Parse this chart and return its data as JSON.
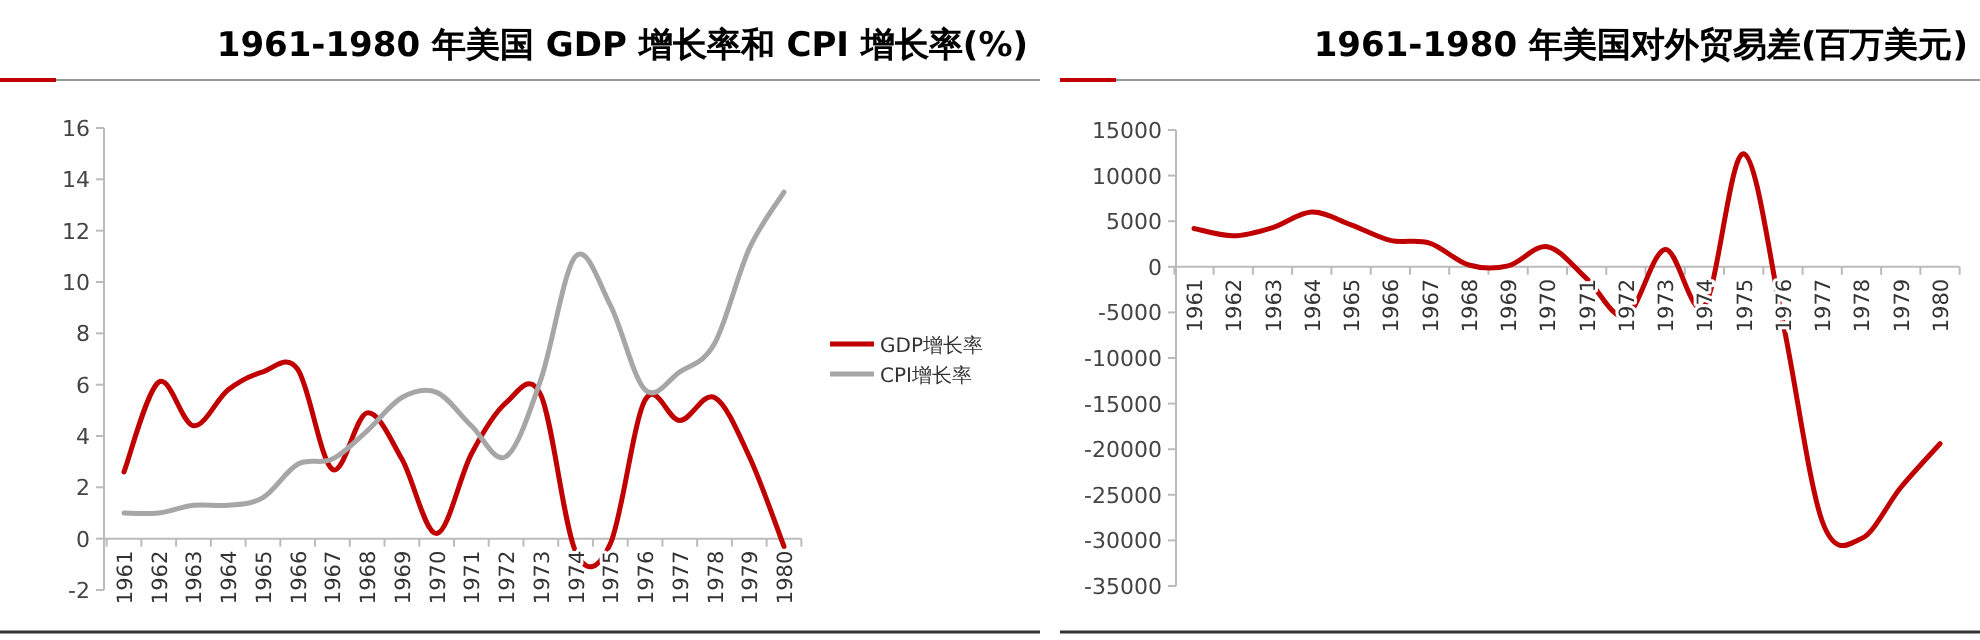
{
  "chart_data": [
    {
      "type": "line",
      "title": "1961-1980 年美国 GDP 增长率和 CPI 增长率(%)",
      "categories": [
        "1961",
        "1962",
        "1963",
        "1964",
        "1965",
        "1966",
        "1967",
        "1968",
        "1969",
        "1970",
        "1971",
        "1972",
        "1973",
        "1974",
        "1975",
        "1976",
        "1977",
        "1978",
        "1979",
        "1980"
      ],
      "series": [
        {
          "name": "GDP增长率",
          "color": "#c00000",
          "values": [
            2.6,
            6.1,
            4.4,
            5.8,
            6.5,
            6.6,
            2.7,
            4.9,
            3.1,
            0.2,
            3.3,
            5.3,
            5.6,
            -0.5,
            -0.2,
            5.4,
            4.6,
            5.5,
            3.2,
            -0.3
          ]
        },
        {
          "name": "CPI增长率",
          "color": "#a6a6a6",
          "values": [
            1.0,
            1.0,
            1.3,
            1.3,
            1.6,
            2.9,
            3.1,
            4.2,
            5.5,
            5.7,
            4.4,
            3.2,
            6.2,
            11.0,
            9.1,
            5.8,
            6.5,
            7.6,
            11.3,
            13.5
          ]
        }
      ],
      "ylim": [
        -2,
        16
      ],
      "yticks": [
        -2,
        0,
        2,
        4,
        6,
        8,
        10,
        12,
        14,
        16
      ],
      "legend": "right"
    },
    {
      "type": "line",
      "title": "1961-1980 年美国对外贸易差(百万美元)",
      "categories": [
        "1961",
        "1962",
        "1963",
        "1964",
        "1965",
        "1966",
        "1967",
        "1968",
        "1969",
        "1970",
        "1971",
        "1972",
        "1973",
        "1974",
        "1975",
        "1976",
        "1977",
        "1978",
        "1979",
        "1980"
      ],
      "series": [
        {
          "color": "#c00000",
          "values": [
            4200,
            3400,
            4300,
            6000,
            4600,
            2900,
            2600,
            200,
            100,
            2200,
            -1300,
            -5400,
            1900,
            -4300,
            12400,
            -6100,
            -27900,
            -29800,
            -24200,
            -19400
          ]
        }
      ],
      "ylim": [
        -35000,
        15000
      ],
      "yticks": [
        -35000,
        -30000,
        -25000,
        -20000,
        -15000,
        -10000,
        -5000,
        0,
        5000,
        10000,
        15000
      ]
    }
  ]
}
